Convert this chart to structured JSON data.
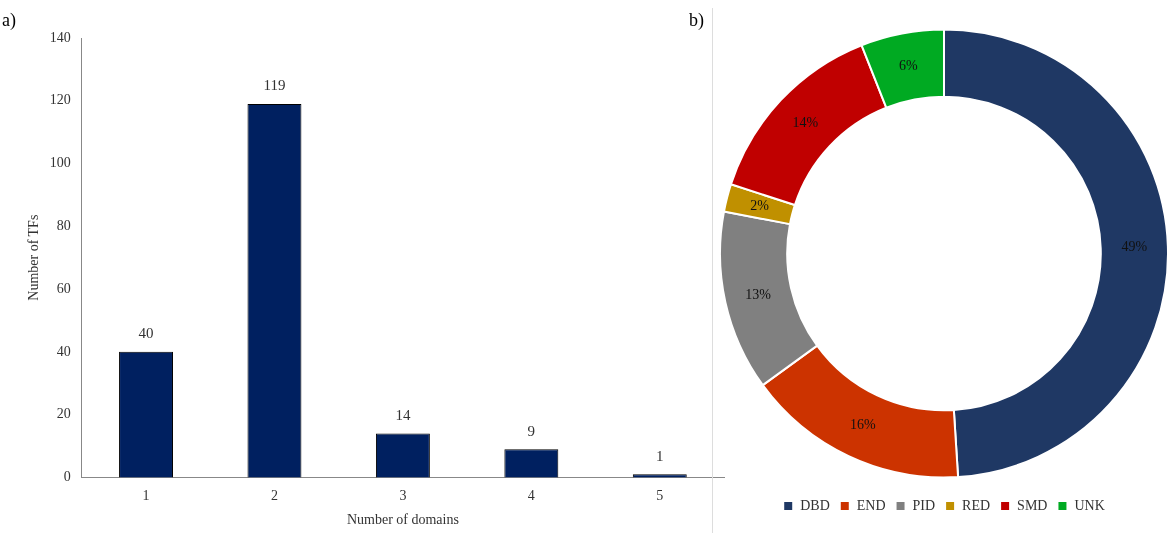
{
  "chart_data": [
    {
      "type": "bar",
      "xlabel": "Number of domains",
      "ylabel": "Number of TFs",
      "categories": [
        "1",
        "2",
        "3",
        "4",
        "5"
      ],
      "values": [
        40,
        119,
        14,
        9,
        1
      ],
      "color": "#002060",
      "ylim": [
        0,
        140
      ],
      "yticks": [
        0,
        20,
        40,
        60,
        80,
        100,
        120,
        140
      ],
      "grid": false,
      "data_labels": true,
      "legend": false,
      "annotations": [
        "a)"
      ]
    },
    {
      "type": "donut",
      "categories": [
        "DBD",
        "END",
        "PID",
        "RED",
        "SMD",
        "UNK"
      ],
      "values": [
        49,
        16,
        13,
        2,
        14,
        6
      ],
      "colors": [
        "#1f3864",
        "#cc3300",
        "#808080",
        "#c09000",
        "#c00000",
        "#00aa22"
      ],
      "value_labels": [
        "49%",
        "16%",
        "13%",
        "2%",
        "14%",
        "6%"
      ],
      "legend": "bottom",
      "annotations": [
        "b)"
      ]
    }
  ]
}
